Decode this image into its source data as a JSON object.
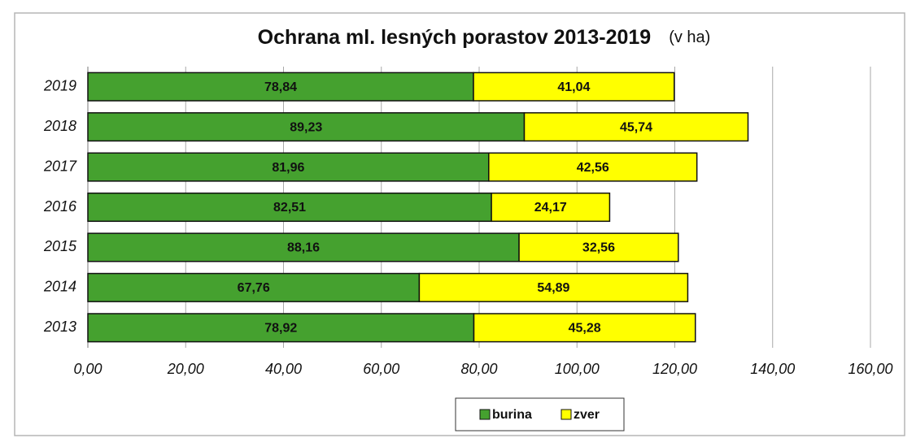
{
  "chart_data": {
    "type": "stacked-hbar",
    "title": "Ochrana ml. lesných porastov  2013-2019",
    "subtitle": "(v ha)",
    "categories": [
      "2019",
      "2018",
      "2017",
      "2016",
      "2015",
      "2014",
      "2013"
    ],
    "series": [
      {
        "name": "burina",
        "color": "#45a12f",
        "values": [
          78.84,
          89.23,
          81.96,
          82.51,
          88.16,
          67.76,
          78.92
        ],
        "value_labels": [
          "78,84",
          "89,23",
          "81,96",
          "82,51",
          "88,16",
          "67,76",
          "78,92"
        ]
      },
      {
        "name": "zver",
        "color": "#ffff00",
        "values": [
          41.04,
          45.74,
          42.56,
          24.17,
          32.56,
          54.89,
          45.28
        ],
        "value_labels": [
          "41,04",
          "45,74",
          "42,56",
          "24,17",
          "32,56",
          "54,89",
          "45,28"
        ]
      }
    ],
    "xlim": [
      0,
      160
    ],
    "xticks": [
      {
        "value": 0,
        "label": "0,00"
      },
      {
        "value": 20,
        "label": "20,00"
      },
      {
        "value": 40,
        "label": "40,00"
      },
      {
        "value": 60,
        "label": "60,00"
      },
      {
        "value": 80,
        "label": "80,00"
      },
      {
        "value": 100,
        "label": "100,00"
      },
      {
        "value": 120,
        "label": "120,00"
      },
      {
        "value": 140,
        "label": "140,00"
      },
      {
        "value": 160,
        "label": "160,00"
      }
    ],
    "grid": true,
    "legend": "bottom"
  }
}
